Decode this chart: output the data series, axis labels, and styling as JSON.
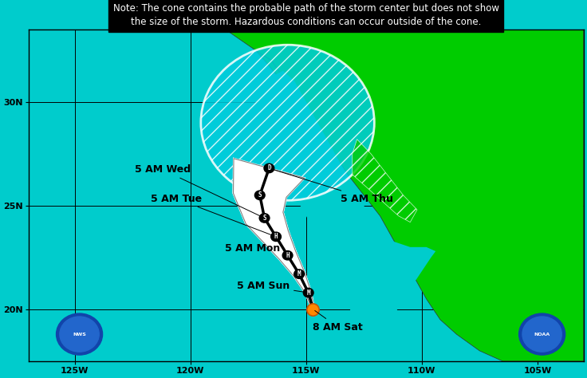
{
  "title_note": "Note: The cone contains the probable path of the storm center but does not show\nthe size of the storm. Hazardous conditions can occur outside of the cone.",
  "bg_ocean": "#00CCCC",
  "bg_land": "#00CC00",
  "lon_min": -127,
  "lon_max": -103,
  "lat_min": 17.5,
  "lat_max": 33.5,
  "lon_ticks": [
    -125,
    -120,
    -115,
    -110,
    -105
  ],
  "lat_ticks": [
    20,
    25,
    30
  ],
  "lon_labels": [
    "125W",
    "120W",
    "115W",
    "110W",
    "105W"
  ],
  "lat_labels": [
    "20N",
    "25N",
    "30N"
  ],
  "track_lons": [
    -114.7,
    -114.9,
    -115.3,
    -115.8,
    -116.3,
    -116.8,
    -117.0,
    -116.6
  ],
  "track_lats": [
    20.0,
    20.8,
    21.7,
    22.6,
    23.5,
    24.4,
    25.5,
    26.8
  ],
  "track_symbols": [
    "orange_dot",
    "M",
    "M",
    "H",
    "H",
    "S",
    "S",
    "D"
  ],
  "note_bg": "#000000",
  "note_text_color": "#FFFFFF",
  "note_fontsize": 8.5,
  "label_fontsize": 9,
  "tick_fontsize": 8
}
